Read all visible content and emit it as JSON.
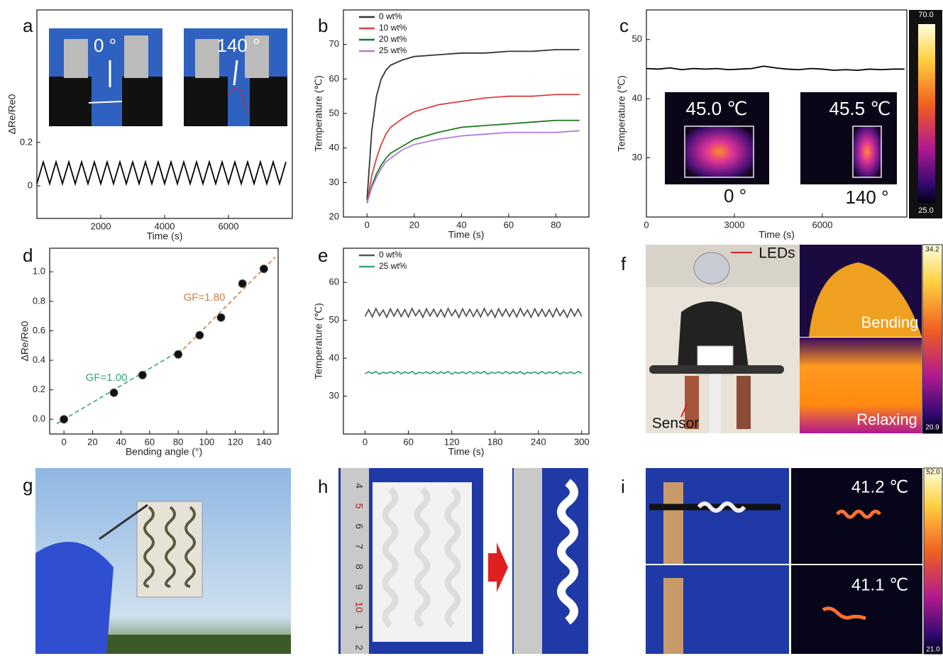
{
  "chart_data": [
    {
      "type": "line",
      "ylabel": "ΔRe/Re0",
      "xlabel": "Time (s)",
      "color": "#000000",
      "x": [
        0,
        200,
        400,
        600,
        800,
        1000,
        1200,
        1400,
        1600,
        1800,
        2000,
        2200,
        2400,
        2600,
        2800,
        3000,
        3200,
        3400,
        3600,
        3800,
        4000,
        4200,
        4400,
        4600,
        4800,
        5000,
        5200,
        5400,
        5600,
        5800,
        6000,
        6200,
        6400,
        6600,
        6800,
        7000,
        7200,
        7400,
        7600,
        7800
      ],
      "values": [
        0.01,
        0.11,
        0.01,
        0.11,
        0.01,
        0.11,
        0.01,
        0.11,
        0.01,
        0.11,
        0.01,
        0.11,
        0.01,
        0.11,
        0.01,
        0.11,
        0.01,
        0.11,
        0.01,
        0.11,
        0.01,
        0.11,
        0.01,
        0.11,
        0.01,
        0.11,
        0.01,
        0.11,
        0.01,
        0.11,
        0.01,
        0.11,
        0.01,
        0.11,
        0.01,
        0.11,
        0.01,
        0.11,
        0.01,
        0.11
      ],
      "xlim": [
        0,
        8000
      ],
      "xticks": [
        2000,
        4000,
        6000
      ],
      "ylim": [
        -0.15,
        0.81
      ],
      "yticks": [
        0,
        0.2
      ]
    },
    {
      "type": "line",
      "ylabel": "Temperature (℃)",
      "xlabel": "Time (s)",
      "legend": "upper left",
      "x": [
        0,
        2,
        4,
        6,
        8,
        10,
        15,
        20,
        30,
        40,
        50,
        60,
        70,
        80,
        90
      ],
      "series": [
        {
          "name": "0 wt%",
          "color": "#333333",
          "values": [
            25,
            45,
            55,
            60,
            62.5,
            64,
            65.5,
            66.5,
            67,
            67.5,
            67.5,
            68,
            68,
            68.5,
            68.5
          ]
        },
        {
          "name": "10 wt%",
          "color": "#d9413f",
          "values": [
            24,
            32,
            37,
            41,
            44,
            46,
            48.5,
            50.5,
            52.5,
            53.5,
            54.5,
            55,
            55,
            55.5,
            55.5
          ]
        },
        {
          "name": "20 wt%",
          "color": "#1a7a1a",
          "values": [
            24,
            29,
            32.5,
            35,
            37,
            38.5,
            40.5,
            42.5,
            44.5,
            46,
            46.5,
            47,
            47.5,
            48,
            48
          ]
        },
        {
          "name": "25 wt%",
          "color": "#b07ae0",
          "values": [
            24,
            28.5,
            31.5,
            34,
            36,
            37,
            39.5,
            41,
            42.5,
            43.5,
            44,
            44.5,
            44.5,
            44.5,
            45
          ]
        }
      ],
      "xlim": [
        -10,
        94
      ],
      "xticks": [
        0,
        20,
        40,
        60,
        80
      ],
      "ylim": [
        20,
        80
      ],
      "yticks": [
        20,
        30,
        40,
        50,
        60,
        70
      ]
    },
    {
      "type": "line",
      "ylabel": "Temperature (℃)",
      "xlabel": "Time (s)",
      "color": "#000000",
      "x": [
        0,
        400,
        800,
        1200,
        1600,
        2000,
        2400,
        2800,
        3200,
        3600,
        4000,
        4400,
        4800,
        5200,
        5600,
        6000,
        6400,
        6800,
        7200,
        7600,
        8000,
        8400,
        8800
      ],
      "values": [
        45.1,
        45.0,
        45.2,
        44.9,
        45.1,
        45.0,
        45.1,
        44.9,
        45.0,
        45.1,
        45.5,
        45.2,
        45.0,
        44.9,
        45.1,
        45.0,
        44.8,
        44.9,
        44.8,
        45.0,
        44.9,
        45.0,
        45.0
      ],
      "xlim": [
        0,
        8880
      ],
      "xticks": [
        0,
        3000,
        6000
      ],
      "ylim": [
        20,
        55
      ],
      "yticks": [
        30,
        40,
        50
      ]
    },
    {
      "type": "scatter",
      "ylabel": "ΔRe/Re0",
      "xlabel": "Bending angle (°)",
      "color": "#111111",
      "x": [
        0,
        35,
        55,
        80,
        95,
        110,
        125,
        140
      ],
      "values": [
        0.0,
        0.18,
        0.3,
        0.44,
        0.57,
        0.69,
        0.92,
        1.02
      ],
      "fits": [
        {
          "name": "GF=1.00",
          "color": "#3aa27a",
          "x": [
            -5,
            82
          ],
          "values": [
            -0.03,
            0.47
          ]
        },
        {
          "name": "GF=1.80",
          "color": "#c9803f",
          "x": [
            80,
            148
          ],
          "values": [
            0.44,
            1.1
          ]
        }
      ],
      "xlim": [
        -10,
        150
      ],
      "xticks": [
        0,
        20,
        40,
        60,
        80,
        100,
        120,
        140
      ],
      "ylim": [
        -0.1,
        1.16
      ],
      "yticks": [
        {
          "value": 0,
          "label": "0.0"
        },
        0.2,
        0.4,
        0.6,
        0.8,
        {
          "value": 1,
          "label": "1.0"
        }
      ]
    },
    {
      "type": "line",
      "ylabel": "Temperature (℃)",
      "xlabel": "Time (s)",
      "legend": "upper left",
      "x": [
        0,
        5,
        10,
        15,
        20,
        25,
        30,
        35,
        40,
        45,
        50,
        55,
        60,
        65,
        70,
        75,
        80,
        85,
        90,
        95,
        100,
        105,
        110,
        115,
        120,
        125,
        130,
        135,
        140,
        145,
        150,
        155,
        160,
        165,
        170,
        175,
        180,
        185,
        190,
        195,
        200,
        205,
        210,
        215,
        220,
        225,
        230,
        235,
        240,
        245,
        250,
        255,
        260,
        265,
        270,
        275,
        280,
        285,
        290,
        295,
        300
      ],
      "series": [
        {
          "name": "0 wt%",
          "color": "#555555",
          "values": [
            51.0,
            52.8,
            50.9,
            53.1,
            51.2,
            52.7,
            50.8,
            53.0,
            51.1,
            52.9,
            51.0,
            52.8,
            50.9,
            53.1,
            51.2,
            52.7,
            50.8,
            53.0,
            51.1,
            52.9,
            51.0,
            52.8,
            50.9,
            53.1,
            51.2,
            52.7,
            50.8,
            53.0,
            51.1,
            52.9,
            51.0,
            52.8,
            50.9,
            53.1,
            51.2,
            52.7,
            50.8,
            53.0,
            51.1,
            52.9,
            51.0,
            52.8,
            50.9,
            53.1,
            51.2,
            52.7,
            50.8,
            53.0,
            51.1,
            52.9,
            51.0,
            52.8,
            50.9,
            53.1,
            51.2,
            52.7,
            50.8,
            53.0,
            51.1,
            52.9,
            51.0
          ]
        },
        {
          "name": "25 wt%",
          "color": "#3aa27a",
          "values": [
            35.9,
            36.4,
            36.0,
            36.5,
            35.8,
            36.3,
            36.0,
            36.4,
            35.9,
            36.5,
            35.9,
            36.4,
            36.0,
            36.5,
            35.8,
            36.3,
            36.0,
            36.4,
            35.9,
            36.5,
            35.9,
            36.4,
            36.0,
            36.5,
            35.8,
            36.3,
            36.0,
            36.4,
            35.9,
            36.5,
            35.9,
            36.4,
            36.0,
            36.5,
            35.8,
            36.3,
            36.0,
            36.4,
            35.9,
            36.5,
            35.9,
            36.4,
            36.0,
            36.5,
            35.8,
            36.3,
            36.0,
            36.4,
            35.9,
            36.5,
            35.9,
            36.4,
            36.0,
            36.5,
            35.8,
            36.3,
            36.0,
            36.4,
            35.9,
            36.5,
            36.0
          ]
        }
      ],
      "xlim": [
        -30,
        310
      ],
      "xticks": [
        0,
        60,
        120,
        180,
        240,
        300
      ],
      "ylim": [
        20,
        69
      ],
      "yticks": [
        30,
        40,
        50,
        60
      ]
    }
  ],
  "panels": {
    "letters": [
      "a",
      "b",
      "c",
      "d",
      "e",
      "f",
      "g",
      "h",
      "i"
    ],
    "a": {
      "insets": [
        "0 °",
        "140 °"
      ]
    },
    "c": {
      "insets": [
        "45.0 ℃",
        "45.5 ℃",
        "0 °",
        "140 °"
      ],
      "colorbar": [
        "70.0",
        "25.0"
      ]
    },
    "f": {
      "labels": [
        "LEDs",
        "Sensor",
        "Bending",
        "Relaxing"
      ],
      "colorbar": [
        "34.2",
        "20.9"
      ]
    },
    "h": {
      "ruler": [
        "4",
        "5",
        "6",
        "7",
        "8",
        "9",
        "10",
        "1",
        "2"
      ]
    },
    "i": {
      "labels": [
        "41.2 ℃",
        "41.1 ℃"
      ],
      "colorbar": [
        "52.0",
        "21.0"
      ]
    }
  }
}
